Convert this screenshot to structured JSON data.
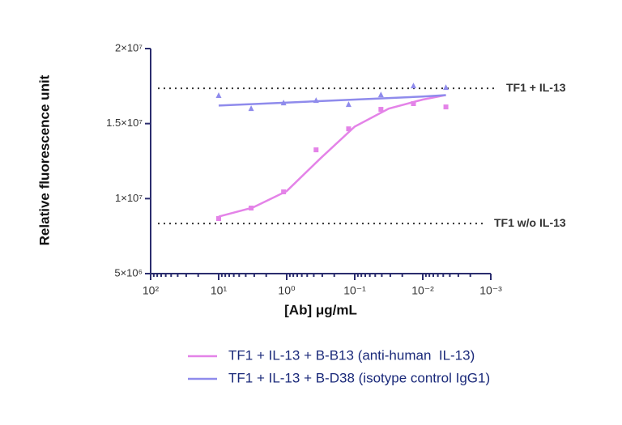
{
  "chart_data": {
    "type": "scatter",
    "x_label": "[Ab] μg/mL",
    "y_label": "Relative fluorescence unit",
    "xscale": "log",
    "xlim": [
      100,
      0.001
    ],
    "xticks": [
      {
        "value": 100,
        "label": "10²"
      },
      {
        "value": 10,
        "label": "10¹"
      },
      {
        "value": 1,
        "label": "10⁰"
      },
      {
        "value": 0.1,
        "label": "10⁻¹"
      },
      {
        "value": 0.01,
        "label": "10⁻²"
      },
      {
        "value": 0.001,
        "label": "10⁻³"
      }
    ],
    "ylim": [
      5000000,
      20000000
    ],
    "yticks": [
      {
        "value": 5000000,
        "label": "5×10⁶"
      },
      {
        "value": 10000000,
        "label": "1×10⁷"
      },
      {
        "value": 15000000,
        "label": "1.5×10⁷"
      },
      {
        "value": 20000000,
        "label": "2×10⁷"
      }
    ],
    "x": [
      10,
      3.333,
      1.111,
      0.37,
      0.123,
      0.0412,
      0.0137,
      0.00457
    ],
    "series": [
      {
        "name": "TF1 + IL-13 + B-B13 (anti-human  IL-13)",
        "color": "#e483e8",
        "marker": "square",
        "values": [
          8670000,
          9370000,
          10450000,
          13250000,
          14650000,
          15950000,
          16330000,
          16110000
        ],
        "fit_x": [
          10,
          3.16,
          1,
          0.316,
          0.1,
          0.0316,
          0.01,
          0.00457
        ],
        "fit_values": [
          8800000,
          9400000,
          10500000,
          12700000,
          14800000,
          16000000,
          16600000,
          16900000
        ]
      },
      {
        "name": "TF1 + IL-13 + B-D38 (isotype control IgG1)",
        "color": "#8f8bec",
        "marker": "triangle",
        "values": [
          16870000,
          16000000,
          16380000,
          16540000,
          16270000,
          16920000,
          17510000,
          17400000
        ],
        "fit_x": [
          10,
          1,
          0.1,
          0.01,
          0.00457
        ],
        "fit_values": [
          16200000,
          16400000,
          16600000,
          16800000,
          16900000
        ]
      }
    ],
    "reference_lines": [
      {
        "label": "TF1 + IL-13",
        "value": 17350000
      },
      {
        "label": "TF1 w/o IL-13",
        "value": 8340000
      }
    ]
  }
}
